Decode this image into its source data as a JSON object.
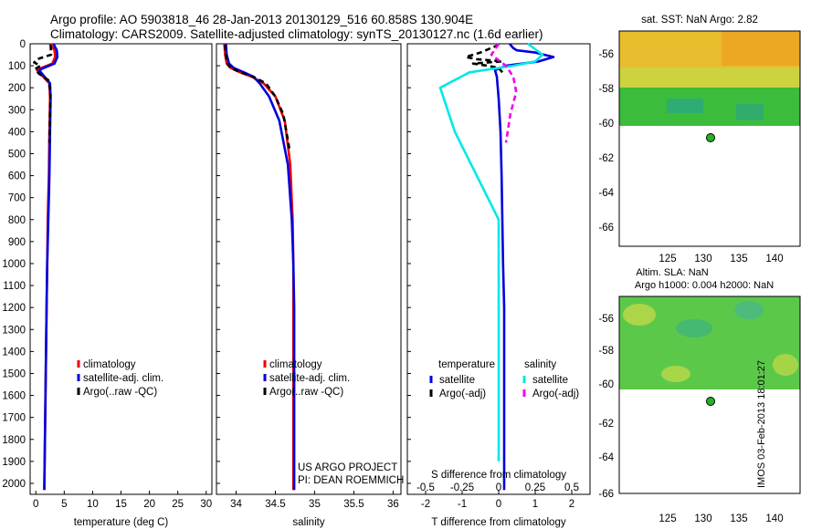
{
  "header": {
    "line1": "Argo profile: AO 5903818_46 28-Jan-2013 20130129_516 60.858S 130.904E",
    "line2": "Climatology: CARS2009. Satellite-adjusted climatology: synTS_20130127.nc (1.6d earlier)"
  },
  "credit": {
    "line1": "US ARGO PROJECT",
    "line2": "PI: DEAN ROEMMICH"
  },
  "stamp": "IMOS 03-Feb-2013 18:01:27",
  "map_sst": {
    "title": "sat. SST: NaN Argo: 2.82",
    "xticks": [
      "125",
      "130",
      "135",
      "140"
    ],
    "yticks": [
      "-56",
      "-58",
      "-60",
      "-62",
      "-64",
      "-66"
    ]
  },
  "map_sla": {
    "title1": "Altim. SLA: NaN",
    "title2": "Argo h1000: 0.004 h2000: NaN",
    "xticks": [
      "125",
      "130",
      "135",
      "140"
    ],
    "yticks": [
      "-56",
      "-58",
      "-60",
      "-62",
      "-64",
      "-66"
    ]
  },
  "colors": {
    "climatology": "#ee0000",
    "satellite": "#0000dd",
    "argo": "#000000",
    "sat_sal": "#00e8e8",
    "argo_sal": "#ee00ee"
  },
  "chart_data": [
    {
      "type": "line",
      "xlabel": "temperature (deg C)",
      "xlim": [
        -1,
        31
      ],
      "ylim": [
        2050,
        0
      ],
      "xticks": [
        "0",
        "5",
        "10",
        "15",
        "20",
        "25",
        "30"
      ],
      "yticks": [
        "0",
        "100",
        "200",
        "300",
        "400",
        "500",
        "600",
        "700",
        "800",
        "900",
        "1000",
        "1100",
        "1200",
        "1300",
        "1400",
        "1500",
        "1600",
        "1700",
        "1800",
        "1900",
        "2000"
      ],
      "legend": [
        "climatology",
        "satellite-adj. clim.",
        "Argo(..raw -QC)"
      ],
      "series": [
        {
          "name": "climatology",
          "x": [
            2.5,
            3.3,
            3.4,
            2.9,
            1.0,
            0.2,
            0.9,
            2.4,
            2.5,
            2.4,
            2.3,
            2.1,
            2.0,
            1.9,
            1.8,
            1.7,
            1.6,
            1.5
          ],
          "y": [
            0,
            30,
            60,
            90,
            110,
            120,
            140,
            180,
            250,
            400,
            600,
            800,
            1000,
            1200,
            1400,
            1600,
            1800,
            2030
          ]
        },
        {
          "name": "satellite-adj. clim.",
          "x": [
            3.1,
            3.7,
            3.8,
            3.3,
            1.4,
            0.6,
            1.2,
            2.5,
            2.6,
            2.5,
            2.4,
            2.2,
            2.0,
            1.9,
            1.8,
            1.7,
            1.6,
            1.5
          ],
          "y": [
            0,
            30,
            60,
            90,
            110,
            120,
            140,
            180,
            250,
            400,
            600,
            800,
            1000,
            1200,
            1400,
            1600,
            1800,
            2030
          ]
        },
        {
          "name": "Argo(..raw -QC)",
          "x": [
            2.6,
            2.7,
            0.2,
            -0.3,
            0.8,
            -0.1,
            0.5,
            2.2,
            2.6,
            2.5,
            2.4
          ],
          "y": [
            5,
            50,
            70,
            85,
            100,
            115,
            135,
            165,
            220,
            320,
            450
          ]
        }
      ]
    },
    {
      "type": "line",
      "xlabel": "salinity",
      "xlim": [
        33.75,
        36.1
      ],
      "ylim": [
        2050,
        0
      ],
      "xticks": [
        "34",
        "34.5",
        "35",
        "35.5",
        "36"
      ],
      "legend": [
        "climatology",
        "satellite-adj. clim.",
        "Argo(..raw -QC)"
      ],
      "series": [
        {
          "name": "climatology",
          "x": [
            33.85,
            33.86,
            33.88,
            33.93,
            34.05,
            34.2,
            34.35,
            34.5,
            34.62,
            34.69,
            34.72,
            34.73,
            34.73,
            34.73,
            34.73,
            34.73,
            34.73
          ],
          "y": [
            0,
            50,
            90,
            110,
            130,
            150,
            180,
            240,
            350,
            550,
            800,
            1000,
            1200,
            1400,
            1600,
            1800,
            2030
          ]
        },
        {
          "name": "satellite-adj. clim.",
          "x": [
            33.87,
            33.88,
            33.91,
            33.97,
            34.1,
            34.22,
            34.3,
            34.42,
            34.55,
            34.66,
            34.71,
            34.73,
            34.74,
            34.74,
            34.74,
            34.74,
            34.74
          ],
          "y": [
            0,
            50,
            90,
            110,
            130,
            150,
            180,
            240,
            350,
            550,
            800,
            1000,
            1200,
            1400,
            1600,
            1800,
            2030
          ]
        },
        {
          "name": "Argo(..raw -QC)",
          "x": [
            33.86,
            33.87,
            33.89,
            33.93,
            34.06,
            34.22,
            34.38,
            34.5,
            34.6,
            34.65,
            34.68
          ],
          "y": [
            5,
            50,
            90,
            110,
            130,
            150,
            180,
            240,
            320,
            420,
            480
          ]
        }
      ]
    },
    {
      "type": "line",
      "xlabel": "T difference from climatology",
      "xlabel2": "S difference from climatology",
      "xlim": [
        -2.5,
        2.5
      ],
      "ylim": [
        2050,
        0
      ],
      "xticks": [
        "-2",
        "-1",
        "0",
        "1",
        "2"
      ],
      "xticks_s": [
        "-0.5",
        "-0.25",
        "0",
        "0.25",
        "0.5"
      ],
      "legend_groups": [
        "temperature",
        "salinity"
      ],
      "legend": [
        "satellite",
        "Argo(-adj)",
        "satellite",
        "Argo(-adj)"
      ],
      "series": [
        {
          "name": "satellite",
          "group": "temperature",
          "x": [
            0.3,
            0.4,
            0.5,
            1.0,
            1.5,
            1.1,
            0.2,
            -0.1,
            -0.05,
            0.0,
            0.05,
            0.08,
            0.1,
            0.12,
            0.15,
            0.15,
            0.15,
            0.15,
            0.15,
            0.15
          ],
          "y": [
            0,
            20,
            30,
            40,
            60,
            80,
            100,
            120,
            150,
            250,
            400,
            600,
            800,
            1000,
            1200,
            1400,
            1600,
            1800,
            1900,
            2030
          ]
        },
        {
          "name": "Argo(-adj)",
          "group": "temperature",
          "x": [
            0.0,
            -0.5,
            -0.9,
            -0.6,
            0.1,
            -0.7,
            -0.3,
            0.0,
            0.1
          ],
          "y": [
            5,
            40,
            60,
            70,
            80,
            90,
            100,
            110,
            130
          ]
        },
        {
          "name": "satellite",
          "group": "salinity",
          "x": [
            0.2,
            0.3,
            0.25,
            0.1,
            -0.2,
            -0.4,
            -0.3,
            -0.15,
            0.0,
            0.0,
            0.0,
            0.0,
            0.0,
            0.0,
            0.0
          ],
          "y": [
            0,
            50,
            80,
            100,
            130,
            200,
            400,
            600,
            800,
            1000,
            1200,
            1400,
            1600,
            1800,
            1900
          ]
        },
        {
          "name": "Argo(-adj)",
          "group": "salinity",
          "x": [
            0.0,
            -0.05,
            0.05,
            0.1,
            0.12,
            0.08,
            0.05
          ],
          "y": [
            0,
            50,
            100,
            150,
            220,
            320,
            450
          ]
        }
      ]
    }
  ]
}
